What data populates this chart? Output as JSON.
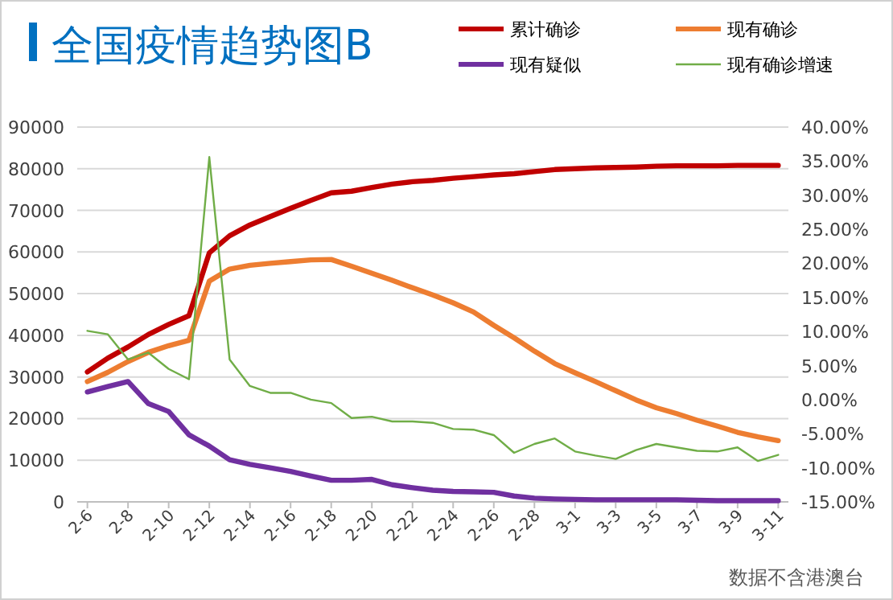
{
  "chart_data": {
    "type": "line",
    "title": "全国疫情趋势图B",
    "annotations": [
      "数据不含港澳台"
    ],
    "categories": [
      "2-6",
      null,
      "2-8",
      null,
      "2-10",
      null,
      "2-12",
      null,
      "2-14",
      null,
      "2-16",
      null,
      "2-18",
      null,
      "2-20",
      null,
      "2-22",
      null,
      "2-24",
      null,
      "2-26",
      null,
      "2-28",
      null,
      "3-1",
      null,
      "3-3",
      null,
      "3-5",
      null,
      "3-7",
      null,
      "3-9",
      null,
      "3-11"
    ],
    "series": [
      {
        "name": "累计确诊",
        "color": "#c00000",
        "values": [
          31200,
          34500,
          37200,
          40200,
          42600,
          44700,
          59800,
          63900,
          66500,
          68500,
          70500,
          72400,
          74200,
          74600,
          75500,
          76300,
          76900,
          77200,
          77700,
          78100,
          78500,
          78800,
          79300,
          79800,
          80000,
          80200,
          80300,
          80400,
          80600,
          80700,
          80700,
          80700,
          80800,
          80800,
          80800
        ]
      },
      {
        "name": "现有确诊",
        "color": "#ed7d31",
        "values": [
          28900,
          31100,
          33700,
          35900,
          37500,
          38800,
          53000,
          55900,
          56800,
          57300,
          57700,
          58100,
          58200,
          56600,
          54900,
          53200,
          51400,
          49700,
          47800,
          45600,
          42400,
          39400,
          36200,
          33200,
          31000,
          28900,
          26700,
          24500,
          22600,
          21200,
          19600,
          18200,
          16700,
          15600,
          14700
        ]
      },
      {
        "name": "现有疑似",
        "color": "#7030a0",
        "values": [
          26400,
          27700,
          28900,
          23600,
          21700,
          16100,
          13400,
          10100,
          9000,
          8200,
          7300,
          6200,
          5200,
          5200,
          5400,
          4100,
          3400,
          2800,
          2500,
          2400,
          2300,
          1400,
          900,
          700,
          600,
          500,
          500,
          500,
          500,
          500,
          400,
          300,
          300,
          300,
          300
        ]
      },
      {
        "name": "现有确诊增速",
        "color": "#70ad47",
        "axis": "y2",
        "values": [
          10.1,
          9.6,
          5.9,
          6.9,
          4.5,
          3.0,
          35.6,
          5.9,
          2.0,
          1.0,
          1.0,
          0.0,
          -0.5,
          -2.7,
          -2.5,
          -3.2,
          -3.2,
          -3.4,
          -4.3,
          -4.4,
          -5.2,
          -7.8,
          -6.5,
          -5.7,
          -7.6,
          -8.2,
          -8.7,
          -7.4,
          -6.5,
          -7.0,
          -7.5,
          -7.6,
          -7.0,
          -9.0,
          -8.1
        ]
      }
    ],
    "ylim": [
      0,
      90000
    ],
    "yticks": [
      0,
      10000,
      20000,
      30000,
      40000,
      50000,
      60000,
      70000,
      80000,
      90000
    ],
    "y2lim": [
      -15,
      40
    ],
    "y2ticks": [
      {
        "value": -15,
        "label": "-15.00%"
      },
      {
        "value": -10,
        "label": "-10.00%"
      },
      {
        "value": -5,
        "label": "-5.00%"
      },
      {
        "value": 0,
        "label": "0.00%"
      },
      {
        "value": 5,
        "label": "5.00%"
      },
      {
        "value": 10,
        "label": "10.00%"
      },
      {
        "value": 15,
        "label": "15.00%"
      },
      {
        "value": 20,
        "label": "20.00%"
      },
      {
        "value": 25,
        "label": "25.00%"
      },
      {
        "value": 30,
        "label": "30.00%"
      },
      {
        "value": 35,
        "label": "35.00%"
      },
      {
        "value": 40,
        "label": "40.00%"
      }
    ],
    "grid": "y",
    "legend": "top right",
    "marker": "none",
    "line_style": "solid"
  }
}
